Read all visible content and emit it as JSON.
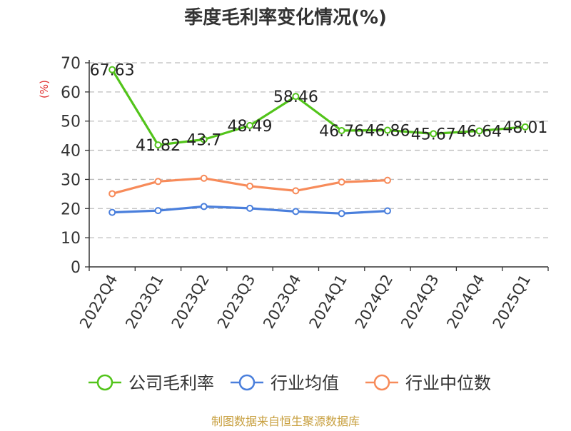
{
  "chart_data": {
    "type": "line",
    "title": "季度毛利率变化情况(%)",
    "ylabel": "(%)",
    "xlabel": "",
    "ylim": [
      0,
      70
    ],
    "yticks": [
      0,
      10,
      20,
      30,
      40,
      50,
      60,
      70
    ],
    "grid": "horizontal-dashed",
    "legend_position": "bottom",
    "categories": [
      "2022Q4",
      "2023Q1",
      "2023Q2",
      "2023Q3",
      "2023Q4",
      "2024Q1",
      "2024Q2",
      "2024Q3",
      "2024Q4",
      "2025Q1"
    ],
    "series": [
      {
        "name": "公司毛利率",
        "color": "#52c41a",
        "values": [
          67.63,
          41.82,
          43.7,
          48.49,
          58.46,
          46.76,
          46.86,
          45.67,
          46.64,
          48.01
        ],
        "labels": [
          "67.63",
          "41.82",
          "43.7",
          "48.49",
          "58.46",
          "46.76",
          "46.86",
          "45.67",
          "46.64",
          "48.01"
        ]
      },
      {
        "name": "行业均值",
        "color": "#4a7fdc",
        "values": [
          18.7,
          19.3,
          20.7,
          20.1,
          19.0,
          18.3,
          19.2,
          null,
          null,
          null
        ]
      },
      {
        "name": "行业中位数",
        "color": "#f78b5a",
        "values": [
          25.1,
          29.3,
          30.4,
          27.7,
          26.1,
          29.1,
          29.7,
          null,
          null,
          null
        ]
      }
    ]
  },
  "footer": {
    "source": "制图数据来自恒生聚源数据库"
  }
}
